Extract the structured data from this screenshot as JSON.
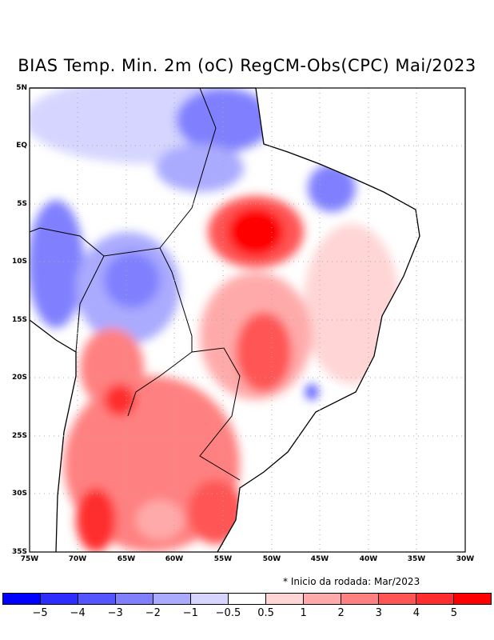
{
  "title": "BIAS Temp. Min. 2m (oC) RegCM-Obs(CPC) Mai/2023",
  "lat_labels": [
    "5N",
    "EQ",
    "5S",
    "10S",
    "15S",
    "20S",
    "25S",
    "30S",
    "35S"
  ],
  "lon_labels": [
    "75W",
    "70W",
    "65W",
    "60W",
    "55W",
    "50W",
    "45W",
    "40W",
    "35W",
    "30W"
  ],
  "note": "* Inicio da rodada: Mar/2023",
  "colorbar": {
    "colors": [
      "#0000ff",
      "#2d2dff",
      "#5555ff",
      "#8080ff",
      "#aaaaff",
      "#d5d5ff",
      "#ffffff",
      "#ffd5d5",
      "#ffaaaa",
      "#ff8080",
      "#ff5555",
      "#ff2d2d",
      "#ff0000"
    ],
    "labels": [
      "−5",
      "−4",
      "−3",
      "−2",
      "−1",
      "−0.5",
      "0.5",
      "1",
      "2",
      "3",
      "4",
      "5"
    ]
  }
}
